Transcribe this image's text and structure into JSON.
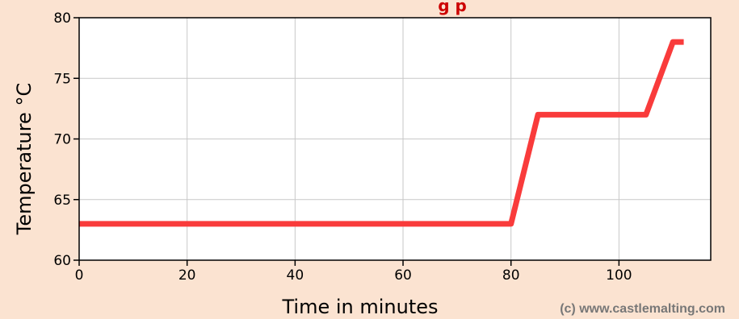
{
  "colors": {
    "background": "#fbe3d1",
    "plot_background": "#ffffff",
    "grid": "#c8c8c8",
    "line": "#f93b3b",
    "title": "#cc0000",
    "credit": "#777777",
    "axis": "#000000"
  },
  "chart_data": {
    "type": "line",
    "title": "",
    "title_visible_fragment": "g    p",
    "xlabel": "Time in minutes",
    "ylabel": "Temperature °C",
    "xlim": [
      0,
      117
    ],
    "ylim": [
      60,
      80
    ],
    "x_ticks": [
      0,
      20,
      40,
      60,
      80,
      100
    ],
    "x_tick_labels": [
      "0",
      "20",
      "40",
      "60",
      "80",
      "100"
    ],
    "y_ticks": [
      60,
      65,
      70,
      75,
      80
    ],
    "y_tick_labels": [
      "60",
      "65",
      "70",
      "75",
      "80"
    ],
    "grid": true,
    "legend": "none",
    "series": [
      {
        "x": [
          0,
          80,
          85,
          105,
          110,
          112
        ],
        "y": [
          63,
          63,
          72,
          72,
          78,
          78
        ]
      }
    ]
  },
  "credit": "(c) www.castlemalting.com"
}
